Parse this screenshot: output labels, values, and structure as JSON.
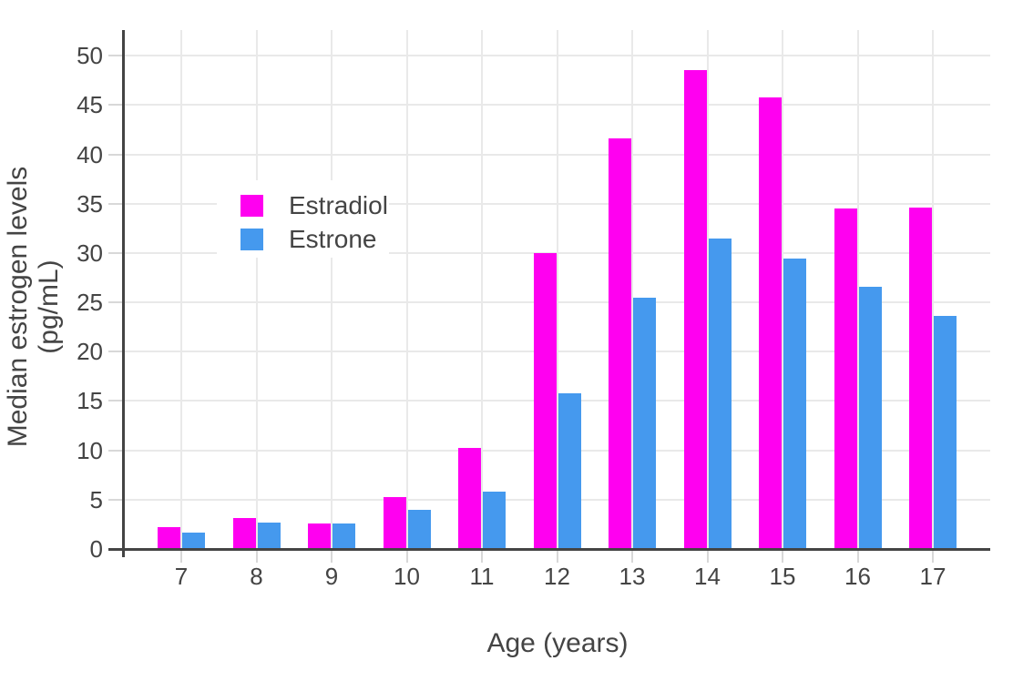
{
  "chart_data": {
    "type": "bar",
    "title": "",
    "xlabel": "Age (years)",
    "ylabel": "Median estrogen levels (pg/mL)",
    "categories": [
      "7",
      "8",
      "9",
      "10",
      "11",
      "12",
      "13",
      "14",
      "15",
      "16",
      "17"
    ],
    "series": [
      {
        "name": "Estradiol",
        "color": "#FF00F0",
        "values": [
          2.2,
          3.1,
          2.6,
          5.3,
          10.2,
          30.0,
          41.6,
          48.5,
          45.8,
          34.5,
          34.6
        ]
      },
      {
        "name": "Estrone",
        "color": "#4599EE",
        "values": [
          1.7,
          2.7,
          2.6,
          4.0,
          5.8,
          15.8,
          25.5,
          31.5,
          29.4,
          26.6,
          23.6
        ]
      }
    ],
    "yticks": [
      0,
      5,
      10,
      15,
      20,
      25,
      30,
      35,
      40,
      45,
      50
    ],
    "ylim": [
      0,
      52.6
    ],
    "grid": true,
    "legend_position": "inside-upper-left",
    "colors": {
      "axis": "#444444",
      "text": "#444444",
      "gridline": "#E9E9E9",
      "tick": "#D8D8D8",
      "legend_background": "#FFFFFF",
      "plot_background": "#FFFFFF"
    }
  }
}
